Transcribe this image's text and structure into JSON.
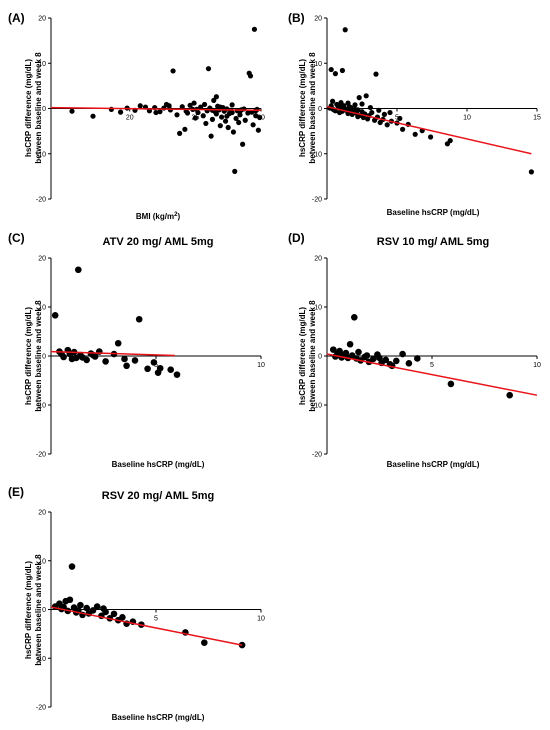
{
  "chart_data": [
    {
      "type": "scatter",
      "panel_label": "(A)",
      "title": "",
      "xlabel": "BMI (kg/m",
      "xlabel_sup": "2",
      "xlabel_tail": ")",
      "ylabel_line1": "hsCRP difference (mg/dL)",
      "ylabel_line2": "between baseline and week 8",
      "xlim": [
        14,
        30
      ],
      "ylim": [
        -20,
        20
      ],
      "xticks": [
        20,
        25,
        30
      ],
      "yticks": [
        -20,
        -10,
        0,
        10,
        20
      ],
      "marker_radius": 2.6,
      "regression": {
        "x": [
          14,
          30
        ],
        "y": [
          0.2,
          -0.4
        ],
        "color": "#e8141a"
      },
      "series": [
        {
          "color": "#000000",
          "points": [
            [
              15.6,
              -0.6
            ],
            [
              17.2,
              -1.7
            ],
            [
              18.6,
              -0.2
            ],
            [
              19.3,
              -0.8
            ],
            [
              19.8,
              0.1
            ],
            [
              20.4,
              -0.4
            ],
            [
              20.8,
              0.6
            ],
            [
              21.2,
              0.3
            ],
            [
              21.5,
              -0.5
            ],
            [
              21.9,
              0.2
            ],
            [
              22.3,
              -0.7
            ],
            [
              22.6,
              0.1
            ],
            [
              22.8,
              0.9
            ],
            [
              23.1,
              -0.3
            ],
            [
              23.3,
              8.3
            ],
            [
              23.6,
              -1.4
            ],
            [
              23.8,
              -5.5
            ],
            [
              24.0,
              0.4
            ],
            [
              24.2,
              -4.6
            ],
            [
              24.4,
              -1.0
            ],
            [
              24.6,
              0.7
            ],
            [
              24.8,
              -0.2
            ],
            [
              25.0,
              -2.1
            ],
            [
              25.2,
              -0.9
            ],
            [
              25.4,
              0.3
            ],
            [
              25.6,
              -1.6
            ],
            [
              25.8,
              -3.3
            ],
            [
              25.9,
              -0.5
            ],
            [
              26.0,
              8.8
            ],
            [
              26.1,
              0.1
            ],
            [
              26.2,
              -6.1
            ],
            [
              26.3,
              -2.4
            ],
            [
              26.4,
              1.8
            ],
            [
              26.5,
              -0.7
            ],
            [
              26.6,
              -1.2
            ],
            [
              26.7,
              0.5
            ],
            [
              26.8,
              -0.3
            ],
            [
              26.9,
              -3.8
            ],
            [
              27.0,
              -1.9
            ],
            [
              27.1,
              0.2
            ],
            [
              27.2,
              -0.6
            ],
            [
              27.3,
              -2.8
            ],
            [
              27.4,
              -0.1
            ],
            [
              27.5,
              -4.2
            ],
            [
              27.6,
              -1.1
            ],
            [
              27.7,
              -0.4
            ],
            [
              27.8,
              -0.9
            ],
            [
              27.9,
              -5.2
            ],
            [
              28.0,
              -13.9
            ],
            [
              28.1,
              -2.2
            ],
            [
              28.2,
              -0.5
            ],
            [
              28.3,
              -3.1
            ],
            [
              28.4,
              -1.4
            ],
            [
              28.5,
              -0.3
            ],
            [
              28.6,
              -7.9
            ],
            [
              28.8,
              -2.6
            ],
            [
              29.0,
              -1.0
            ],
            [
              29.2,
              7.2
            ],
            [
              29.3,
              -0.8
            ],
            [
              29.4,
              -3.6
            ],
            [
              29.5,
              17.5
            ],
            [
              29.6,
              -1.6
            ],
            [
              29.7,
              -0.2
            ],
            [
              29.8,
              -4.8
            ],
            [
              29.9,
              -2.0
            ],
            [
              22.0,
              -0.9
            ],
            [
              23.0,
              0.6
            ],
            [
              24.9,
              1.2
            ],
            [
              25.7,
              0.9
            ],
            [
              26.6,
              2.6
            ],
            [
              27.8,
              0.8
            ],
            [
              28.7,
              -0.1
            ],
            [
              29.1,
              7.8
            ],
            [
              26.3,
              -0.4
            ],
            [
              25.1,
              -0.2
            ],
            [
              24.3,
              -0.6
            ],
            [
              27.4,
              -1.7
            ],
            [
              28.4,
              -0.6
            ],
            [
              29.6,
              -0.5
            ],
            [
              26.9,
              0.3
            ]
          ]
        }
      ]
    },
    {
      "type": "scatter",
      "panel_label": "(B)",
      "title": "",
      "xlabel": "Baseline hsCRP (mg/dL)",
      "ylabel_line1": "hsCRP difference (mg/dL)",
      "ylabel_line2": "between baseline and week 8",
      "xlim": [
        0,
        15
      ],
      "ylim": [
        -20,
        20
      ],
      "xticks": [
        5,
        10,
        15
      ],
      "yticks": [
        -20,
        -10,
        0,
        10,
        20
      ],
      "marker_radius": 2.6,
      "regression": {
        "x": [
          0,
          14.6
        ],
        "y": [
          0.4,
          -10.0
        ],
        "color": "#e8141a"
      },
      "series": [
        {
          "color": "#000000",
          "points": [
            [
              0.3,
              8.6
            ],
            [
              0.6,
              7.7
            ],
            [
              1.1,
              8.4
            ],
            [
              1.3,
              17.4
            ],
            [
              0.4,
              1.6
            ],
            [
              0.7,
              0.9
            ],
            [
              0.9,
              0.3
            ],
            [
              1.0,
              -0.2
            ],
            [
              1.2,
              0.6
            ],
            [
              1.4,
              -0.4
            ],
            [
              1.5,
              1.2
            ],
            [
              1.6,
              -0.8
            ],
            [
              1.7,
              0.2
            ],
            [
              1.8,
              -1.3
            ],
            [
              1.9,
              -0.5
            ],
            [
              2.0,
              0.8
            ],
            [
              2.1,
              -1.0
            ],
            [
              2.2,
              -0.3
            ],
            [
              2.3,
              2.4
            ],
            [
              2.4,
              -1.5
            ],
            [
              2.5,
              -0.7
            ],
            [
              2.6,
              -2.0
            ],
            [
              2.7,
              -1.2
            ],
            [
              2.8,
              2.8
            ],
            [
              2.9,
              -2.3
            ],
            [
              3.0,
              -1.6
            ],
            [
              3.2,
              -0.9
            ],
            [
              3.4,
              -2.6
            ],
            [
              3.5,
              7.6
            ],
            [
              3.6,
              -1.9
            ],
            [
              3.8,
              -3.1
            ],
            [
              4.0,
              -2.4
            ],
            [
              4.3,
              -3.6
            ],
            [
              4.6,
              -2.8
            ],
            [
              5.0,
              -3.2
            ],
            [
              5.4,
              -4.6
            ],
            [
              5.8,
              -3.5
            ],
            [
              6.3,
              -5.7
            ],
            [
              6.8,
              -4.9
            ],
            [
              7.4,
              -6.3
            ],
            [
              8.6,
              -7.8
            ],
            [
              8.8,
              -7.1
            ],
            [
              14.6,
              -14.0
            ],
            [
              0.2,
              0.1
            ],
            [
              0.5,
              -0.3
            ],
            [
              0.8,
              0.5
            ],
            [
              1.1,
              -0.6
            ],
            [
              1.3,
              -0.1
            ],
            [
              1.6,
              0.4
            ],
            [
              1.9,
              -0.9
            ],
            [
              2.2,
              -1.8
            ],
            [
              2.5,
              1.0
            ],
            [
              0.3,
              0.6
            ],
            [
              0.6,
              -0.5
            ],
            [
              1.0,
              1.3
            ],
            [
              1.5,
              -1.1
            ],
            [
              2.0,
              -0.2
            ],
            [
              3.1,
              0.2
            ],
            [
              3.7,
              -0.4
            ],
            [
              4.1,
              -1.3
            ],
            [
              4.5,
              -0.9
            ],
            [
              5.2,
              -2.2
            ],
            [
              0.4,
              -0.1
            ],
            [
              0.9,
              -0.9
            ]
          ]
        }
      ]
    },
    {
      "type": "scatter",
      "panel_label": "(C)",
      "title": "ATV 20 mg/ AML 5mg",
      "xlabel": "Baseline hsCRP (mg/dL)",
      "ylabel_line1": "hsCRP difference (mg/dL)",
      "ylabel_line2": "between baseline and week 8",
      "xlim": [
        0,
        10
      ],
      "ylim": [
        -20,
        20
      ],
      "xticks": [
        5,
        10
      ],
      "yticks": [
        -20,
        -10,
        0,
        10,
        20
      ],
      "marker_radius": 3.3,
      "regression": {
        "x": [
          0,
          5.9
        ],
        "y": [
          0.9,
          0.1
        ],
        "color": "#e8141a"
      },
      "series": [
        {
          "color": "#000000",
          "points": [
            [
              0.2,
              8.3
            ],
            [
              0.4,
              0.9
            ],
            [
              0.6,
              -0.2
            ],
            [
              0.8,
              1.2
            ],
            [
              0.9,
              0.4
            ],
            [
              1.0,
              -0.6
            ],
            [
              1.1,
              0.8
            ],
            [
              1.3,
              17.6
            ],
            [
              1.4,
              0.2
            ],
            [
              1.5,
              -0.3
            ],
            [
              1.7,
              -0.8
            ],
            [
              1.9,
              0.5
            ],
            [
              2.1,
              -0.1
            ],
            [
              2.3,
              0.9
            ],
            [
              2.6,
              -1.1
            ],
            [
              3.0,
              0.4
            ],
            [
              3.2,
              2.6
            ],
            [
              3.5,
              -0.6
            ],
            [
              4.0,
              -0.9
            ],
            [
              4.2,
              7.5
            ],
            [
              4.6,
              -2.6
            ],
            [
              4.9,
              -1.3
            ],
            [
              5.1,
              -3.4
            ],
            [
              5.2,
              -2.5
            ],
            [
              5.7,
              -2.8
            ],
            [
              6.0,
              -3.8
            ],
            [
              0.5,
              0.4
            ],
            [
              1.2,
              -0.4
            ],
            [
              2.0,
              0.2
            ],
            [
              3.6,
              -2.0
            ]
          ]
        }
      ]
    },
    {
      "type": "scatter",
      "panel_label": "(D)",
      "title": "RSV 10 mg/ AML 5mg",
      "xlabel": "Baseline hsCRP (mg/dL)",
      "ylabel_line1": "hsCRP difference (mg/dL)",
      "ylabel_line2": "between baseline and week 8",
      "xlim": [
        0,
        10
      ],
      "ylim": [
        -20,
        20
      ],
      "xticks": [
        5,
        10
      ],
      "yticks": [
        -20,
        -10,
        0,
        10,
        20
      ],
      "marker_radius": 3.3,
      "regression": {
        "x": [
          0,
          10
        ],
        "y": [
          0.4,
          -8.0
        ],
        "color": "#e8141a"
      },
      "series": [
        {
          "color": "#000000",
          "points": [
            [
              0.3,
              1.3
            ],
            [
              0.5,
              0.4
            ],
            [
              0.7,
              -0.3
            ],
            [
              0.9,
              0.6
            ],
            [
              1.0,
              -0.4
            ],
            [
              1.1,
              2.4
            ],
            [
              1.2,
              0.1
            ],
            [
              1.3,
              7.9
            ],
            [
              1.4,
              -0.5
            ],
            [
              1.5,
              0.8
            ],
            [
              1.6,
              -0.9
            ],
            [
              1.8,
              -0.2
            ],
            [
              2.0,
              -1.2
            ],
            [
              2.2,
              -0.6
            ],
            [
              2.4,
              0.3
            ],
            [
              2.6,
              -1.4
            ],
            [
              2.8,
              -0.8
            ],
            [
              3.0,
              -1.7
            ],
            [
              3.3,
              -1.0
            ],
            [
              3.6,
              0.4
            ],
            [
              3.9,
              -1.5
            ],
            [
              4.3,
              -0.5
            ],
            [
              5.9,
              -5.7
            ],
            [
              8.7,
              -8.0
            ],
            [
              0.4,
              -0.1
            ],
            [
              0.8,
              0.2
            ],
            [
              1.9,
              0.1
            ],
            [
              2.5,
              -0.4
            ],
            [
              3.1,
              -2.0
            ],
            [
              0.6,
              1.0
            ]
          ]
        }
      ]
    },
    {
      "type": "scatter",
      "panel_label": "(E)",
      "title": "RSV 20 mg/ AML 5mg",
      "xlabel": "Baseline hsCRP (mg/dL)",
      "ylabel_line1": "hsCRP difference (mg/dL)",
      "ylabel_line2": "between baseline and week 8",
      "xlim": [
        0,
        10
      ],
      "ylim": [
        -20,
        20
      ],
      "xticks": [
        5,
        10
      ],
      "yticks": [
        -20,
        -10,
        0,
        10,
        20
      ],
      "marker_radius": 3.3,
      "regression": {
        "x": [
          0,
          9.1
        ],
        "y": [
          0.5,
          -7.3
        ],
        "color": "#e8141a"
      },
      "series": [
        {
          "color": "#000000",
          "points": [
            [
              0.2,
              0.6
            ],
            [
              0.4,
              1.2
            ],
            [
              0.5,
              0.1
            ],
            [
              0.7,
              1.7
            ],
            [
              0.8,
              -0.3
            ],
            [
              0.9,
              2.0
            ],
            [
              1.0,
              8.8
            ],
            [
              1.1,
              0.4
            ],
            [
              1.2,
              -0.6
            ],
            [
              1.4,
              0.9
            ],
            [
              1.5,
              -1.1
            ],
            [
              1.7,
              0.3
            ],
            [
              1.8,
              -0.8
            ],
            [
              2.0,
              -0.2
            ],
            [
              2.2,
              0.6
            ],
            [
              2.4,
              -1.3
            ],
            [
              2.6,
              -0.5
            ],
            [
              2.8,
              -1.8
            ],
            [
              3.0,
              -0.9
            ],
            [
              3.2,
              -2.2
            ],
            [
              3.4,
              -1.6
            ],
            [
              3.6,
              -2.9
            ],
            [
              3.9,
              -2.5
            ],
            [
              4.3,
              -3.1
            ],
            [
              6.4,
              -4.7
            ],
            [
              7.3,
              -6.8
            ],
            [
              9.1,
              -7.3
            ],
            [
              0.6,
              0.5
            ],
            [
              1.3,
              -0.2
            ],
            [
              2.5,
              0.2
            ]
          ]
        }
      ]
    }
  ]
}
